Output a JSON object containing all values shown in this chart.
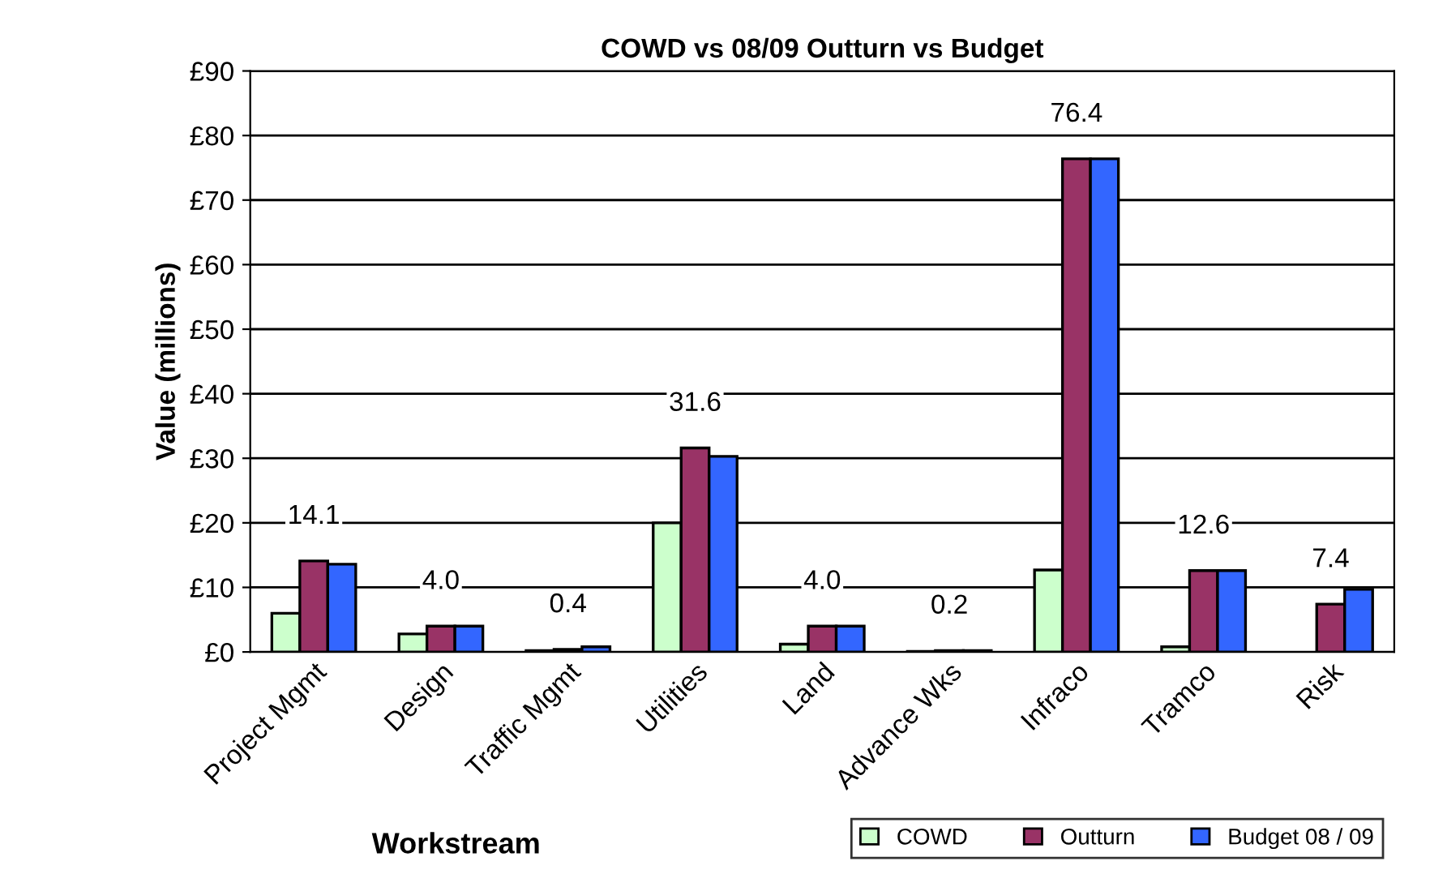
{
  "chart_data": {
    "type": "bar",
    "title": "COWD vs 08/09 Outturn vs Budget",
    "xlabel": "Workstream",
    "ylabel": "Value (millions)",
    "categories": [
      "Project Mgmt",
      "Design",
      "Traffic Mgmt",
      "Utilities",
      "Land",
      "Advance Wks",
      "Infraco",
      "Tramco",
      "Risk"
    ],
    "series": [
      {
        "name": "COWD",
        "color": "#ccffcc",
        "values": [
          6.0,
          2.8,
          0.2,
          20.0,
          1.2,
          0.1,
          12.7,
          0.8,
          null
        ]
      },
      {
        "name": "Outturn",
        "color": "#993366",
        "values": [
          14.1,
          4.0,
          0.4,
          31.6,
          4.0,
          0.2,
          76.4,
          12.6,
          7.4
        ],
        "value_labels": [
          "14.1",
          "4.0",
          "0.4",
          "31.6",
          "4.0",
          "0.2",
          "76.4",
          "12.6",
          "7.4"
        ]
      },
      {
        "name": "Budget 08 / 09",
        "color": "#3366ff",
        "values": [
          13.6,
          4.0,
          0.8,
          30.3,
          4.0,
          0.2,
          76.4,
          12.6,
          9.7
        ]
      }
    ],
    "ylim": [
      0,
      90
    ],
    "yticks": [
      {
        "value": 0,
        "label": "£0"
      },
      {
        "value": 10,
        "label": "£10"
      },
      {
        "value": 20,
        "label": "£20"
      },
      {
        "value": 30,
        "label": "£30"
      },
      {
        "value": 40,
        "label": "£40"
      },
      {
        "value": 50,
        "label": "£50"
      },
      {
        "value": 60,
        "label": "£60"
      },
      {
        "value": 70,
        "label": "£70"
      },
      {
        "value": 80,
        "label": "£80"
      },
      {
        "value": 90,
        "label": "£90"
      }
    ],
    "grid": "y",
    "legend": "bottom right"
  }
}
